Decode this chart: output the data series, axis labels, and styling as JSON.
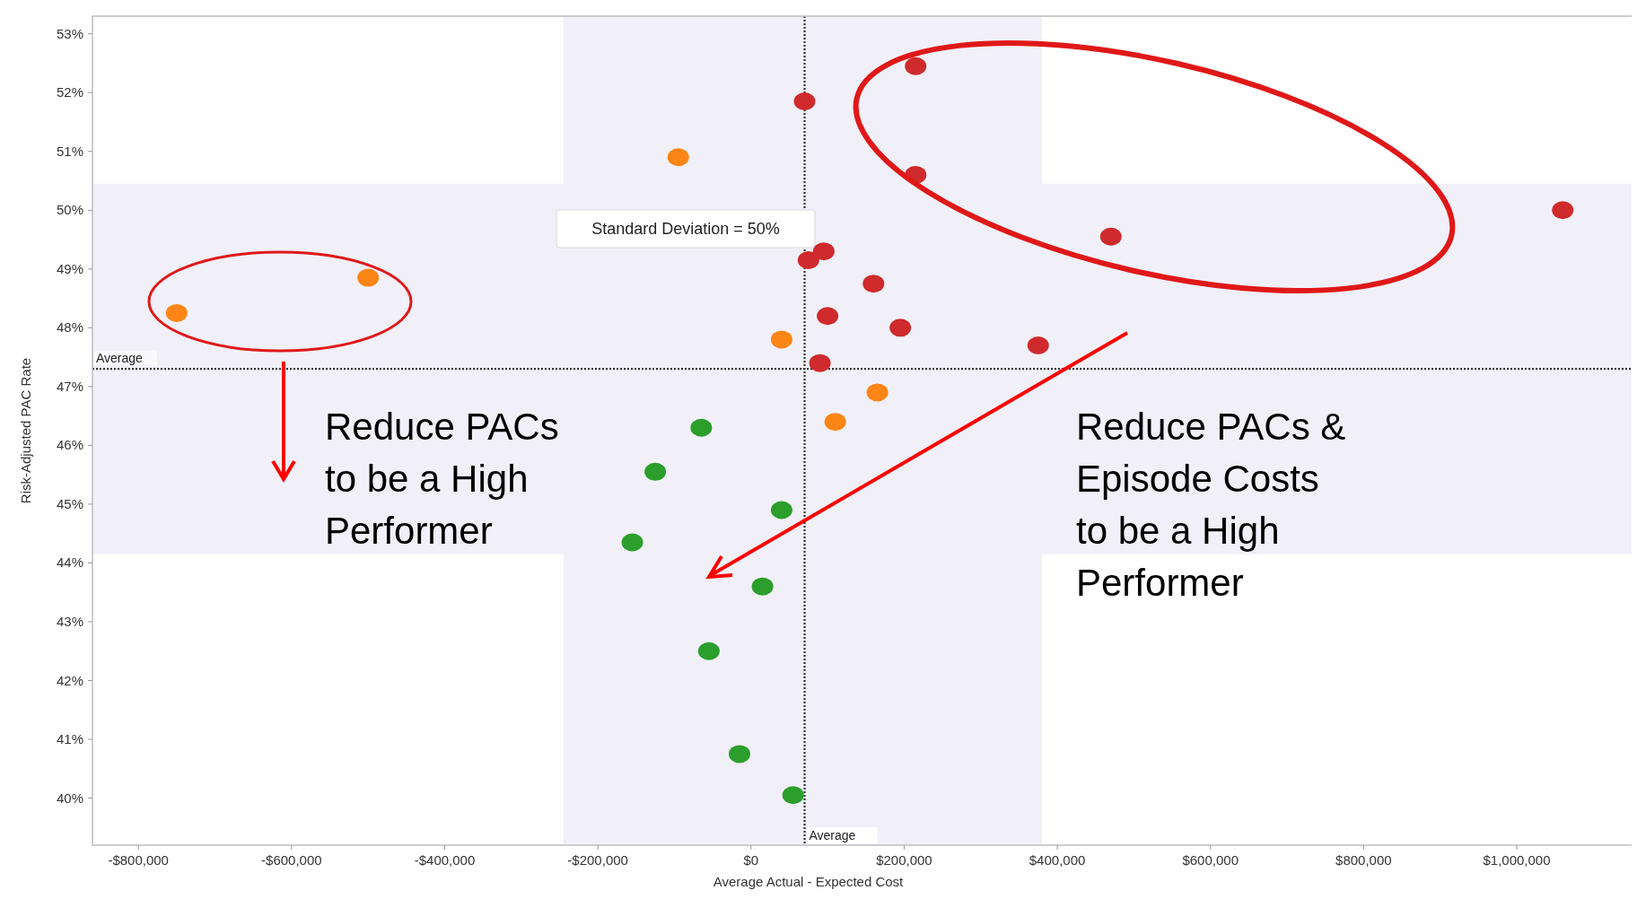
{
  "chart_data": {
    "type": "scatter",
    "xlabel": "Average Actual - Expected Cost",
    "ylabel": "Risk-Adjusted PAC Rate",
    "xlim": [
      -860000,
      1150000
    ],
    "ylim": [
      39.2,
      53.3
    ],
    "xticks": [
      {
        "value": -800000,
        "label": "-$800,000"
      },
      {
        "value": -600000,
        "label": "-$600,000"
      },
      {
        "value": -400000,
        "label": "-$400,000"
      },
      {
        "value": -200000,
        "label": "-$200,000"
      },
      {
        "value": 0,
        "label": "$0"
      },
      {
        "value": 200000,
        "label": "$200,000"
      },
      {
        "value": 400000,
        "label": "$400,000"
      },
      {
        "value": 600000,
        "label": "$600,000"
      },
      {
        "value": 800000,
        "label": "$800,000"
      },
      {
        "value": 1000000,
        "label": "$1,000,000"
      }
    ],
    "yticks": [
      {
        "value": 40,
        "label": "40%"
      },
      {
        "value": 41,
        "label": "41%"
      },
      {
        "value": 42,
        "label": "42%"
      },
      {
        "value": 43,
        "label": "43%"
      },
      {
        "value": 44,
        "label": "44%"
      },
      {
        "value": 45,
        "label": "45%"
      },
      {
        "value": 46,
        "label": "46%"
      },
      {
        "value": 47,
        "label": "47%"
      },
      {
        "value": 48,
        "label": "48%"
      },
      {
        "value": 49,
        "label": "49%"
      },
      {
        "value": 50,
        "label": "50%"
      },
      {
        "value": 51,
        "label": "51%"
      },
      {
        "value": 52,
        "label": "52%"
      },
      {
        "value": 53,
        "label": "53%"
      }
    ],
    "marker": "circle",
    "series": [
      {
        "color": "#fd8516",
        "x": [
          -95000,
          -500000,
          -750000,
          40000,
          165000,
          110000
        ],
        "values": [
          50.9,
          48.85,
          48.25,
          47.8,
          46.9,
          46.4
        ]
      },
      {
        "color": "#cf2a2c",
        "x": [
          215000,
          70000,
          215000,
          1060000,
          470000,
          75000,
          95000,
          160000,
          100000,
          195000,
          375000,
          90000
        ],
        "values": [
          52.45,
          51.85,
          50.6,
          50.0,
          49.55,
          49.15,
          49.3,
          48.75,
          48.2,
          48.0,
          47.7,
          47.4
        ]
      },
      {
        "color": "#2b9e2b",
        "x": [
          -65000,
          -125000,
          40000,
          -155000,
          15000,
          -55000,
          -15000,
          55000
        ],
        "values": [
          46.3,
          45.55,
          44.9,
          44.35,
          43.6,
          42.5,
          40.75,
          40.05
        ]
      }
    ],
    "ref_lines": [
      {
        "axis": "y",
        "value": 47.3,
        "label": "Average",
        "line_style": "dotted",
        "color": "#333333"
      },
      {
        "axis": "x",
        "value": 70000,
        "label": "Average",
        "line_style": "dotted",
        "color": "#333333"
      }
    ],
    "bands": [
      {
        "axis": "x",
        "from": -245000,
        "to": 380000,
        "color": "#f1f0f8"
      },
      {
        "axis": "y",
        "from": 44.15,
        "to": 50.45,
        "color": "#f1f0f8"
      }
    ],
    "annotations": [
      "Standard Deviation = 50%",
      "Reduce PACs to be a High Performer",
      "Reduce PACs & Episode Costs to be a High Performer"
    ]
  }
}
